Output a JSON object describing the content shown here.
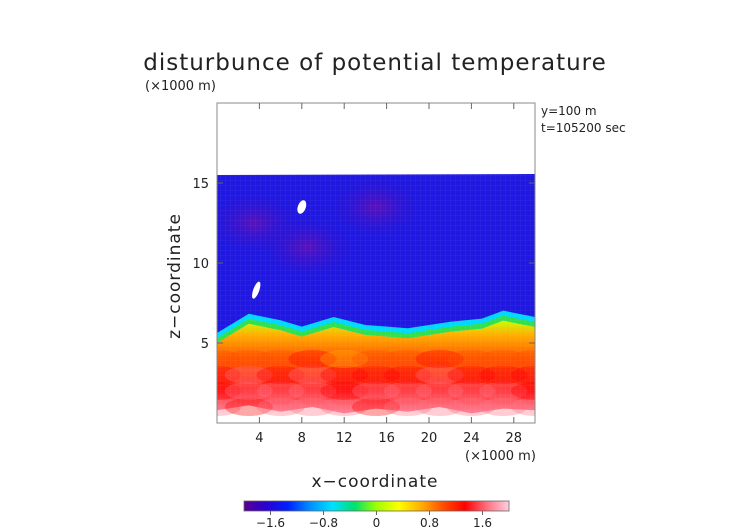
{
  "chart_data": {
    "type": "heatmap",
    "title": "disturbunce of potential temperature",
    "ylabel": "z−coordinate",
    "xlabel": "x−coordinate",
    "y_unit": "(×1000 m)",
    "x_unit": "(×1000 m)",
    "annotations": [
      "y=100 m",
      "t=105200 sec"
    ],
    "xlim": [
      0,
      30
    ],
    "ylim": [
      0,
      20
    ],
    "x_ticks": [
      4,
      8,
      12,
      16,
      20,
      24,
      28
    ],
    "x_tick_labels": [
      "4",
      "8",
      "12",
      "16",
      "20",
      "24",
      "28"
    ],
    "y_ticks": [
      5,
      10,
      15
    ],
    "y_tick_labels": [
      "5",
      "10",
      "15"
    ],
    "colorbar": {
      "range": [
        -2.0,
        2.0
      ],
      "ticks": [
        -1.6,
        -0.8,
        0,
        0.8,
        1.6
      ],
      "tick_labels": [
        "−1.6",
        "−0.8",
        "0",
        "0.8",
        "1.6"
      ],
      "colors": [
        "#5a0090",
        "#2a00d0",
        "#0020ff",
        "#0090ff",
        "#00e0ff",
        "#00e070",
        "#a0ff00",
        "#ffff00",
        "#ffb000",
        "#ff5000",
        "#ff0000",
        "#ff7080",
        "#ffd0e0"
      ]
    },
    "field": {
      "upper_layer_top_km": 15.5,
      "interface_profile": {
        "x": [
          0,
          3,
          6,
          8,
          11,
          14,
          18,
          22,
          25,
          27,
          30
        ],
        "z": [
          5.0,
          6.2,
          5.8,
          5.4,
          6.0,
          5.5,
          5.3,
          5.7,
          5.9,
          6.4,
          6.0
        ]
      },
      "bottom_profile": {
        "x": [
          0,
          3,
          6,
          9,
          12,
          15,
          18,
          21,
          24,
          27,
          30
        ],
        "z": [
          0.8,
          1.1,
          0.7,
          1.0,
          0.6,
          0.9,
          0.7,
          1.0,
          0.6,
          0.9,
          0.8
        ]
      },
      "lower_layer_values": {
        "x": [
          0,
          3,
          6,
          9,
          12,
          15,
          18,
          21,
          24,
          27,
          30
        ],
        "z": [
          1,
          2,
          3,
          4
        ],
        "theta": [
          [
            1.6,
            1.4,
            1.7,
            1.5,
            1.6,
            1.3,
            1.5,
            1.7,
            1.6,
            1.5,
            1.6
          ],
          [
            1.4,
            1.6,
            1.5,
            1.7,
            1.4,
            1.5,
            1.6,
            1.8,
            1.5,
            1.6,
            1.4
          ],
          [
            1.2,
            1.5,
            1.3,
            1.5,
            1.2,
            1.3,
            1.4,
            1.6,
            1.3,
            1.4,
            1.2
          ],
          [
            0.9,
            1.1,
            1.0,
            1.2,
            0.8,
            0.9,
            1.0,
            1.3,
            1.0,
            1.1,
            0.9
          ]
        ]
      },
      "upper_layer_value": -1.3,
      "purple_patches": [
        {
          "x": 3.5,
          "z": 12.5,
          "theta": -1.8
        },
        {
          "x": 8.5,
          "z": 11.0,
          "theta": -1.7
        },
        {
          "x": 15.0,
          "z": 13.5,
          "theta": -1.6
        }
      ],
      "missing_regions": [
        {
          "x": 8.0,
          "z": 13.5
        },
        {
          "x": 3.7,
          "z": 8.3
        }
      ]
    }
  }
}
